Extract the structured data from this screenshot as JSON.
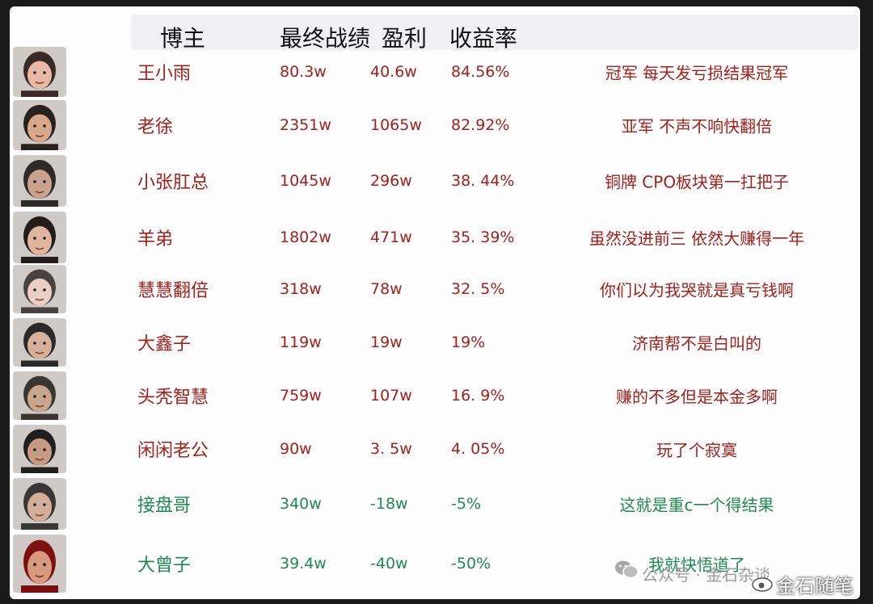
{
  "header": {
    "blogger": "博主",
    "final_result": "最终战绩",
    "profit": "盈利",
    "return_rate": "收益率"
  },
  "rows": [
    {
      "name": "王小雨",
      "final": "80.3w",
      "profit": "40.6w",
      "rate": "84.56%",
      "comment": "冠军 每天发亏损结果冠军",
      "color": "#a3201b"
    },
    {
      "name": "老徐",
      "final": "2351w",
      "profit": "1065w",
      "rate": "82.92%",
      "comment": "亚军 不声不响快翻倍",
      "color": "#a3201b"
    },
    {
      "name": "小张肛总",
      "final": "1045w",
      "profit": "296w",
      "rate": "38. 44%",
      "comment": "铜牌 CPO板块第一扛把子",
      "color": "#a3201b"
    },
    {
      "name": "羊弟",
      "final": "1802w",
      "profit": "471w",
      "rate": "35. 39%",
      "comment": "虽然没进前三 依然大赚得一年",
      "color": "#a3201b"
    },
    {
      "name": "慧慧翻倍",
      "final": "318w",
      "profit": "78w",
      "rate": "32. 5%",
      "comment": "你们以为我哭就是真亏钱啊",
      "color": "#a3201b"
    },
    {
      "name": "大鑫子",
      "final": "119w",
      "profit": "19w",
      "rate": "19%",
      "comment": "济南帮不是白叫的",
      "color": "#a3201b"
    },
    {
      "name": "头秃智慧",
      "final": "759w",
      "profit": "107w",
      "rate": "16. 9%",
      "comment": "赚的不多但是本金多啊",
      "color": "#a3201b"
    },
    {
      "name": "闲闲老公",
      "final": "90w",
      "profit": "3. 5w",
      "rate": "4. 05%",
      "comment": "玩了个寂寞",
      "color": "#a3201b"
    },
    {
      "name": "接盘哥",
      "final": "340w",
      "profit": "-18w",
      "rate": "-5%",
      "comment": "这就是重c一个得结果",
      "color": "#1e8a4e"
    },
    {
      "name": "大曾子",
      "final": "39.4w",
      "profit": "-40w",
      "rate": "-50%",
      "comment": "我就快悟道了",
      "color": "#1e8a4e"
    }
  ],
  "watermark": {
    "account_text": "公众号 · 金石杂谈",
    "weibo_text": "金石随笔"
  }
}
